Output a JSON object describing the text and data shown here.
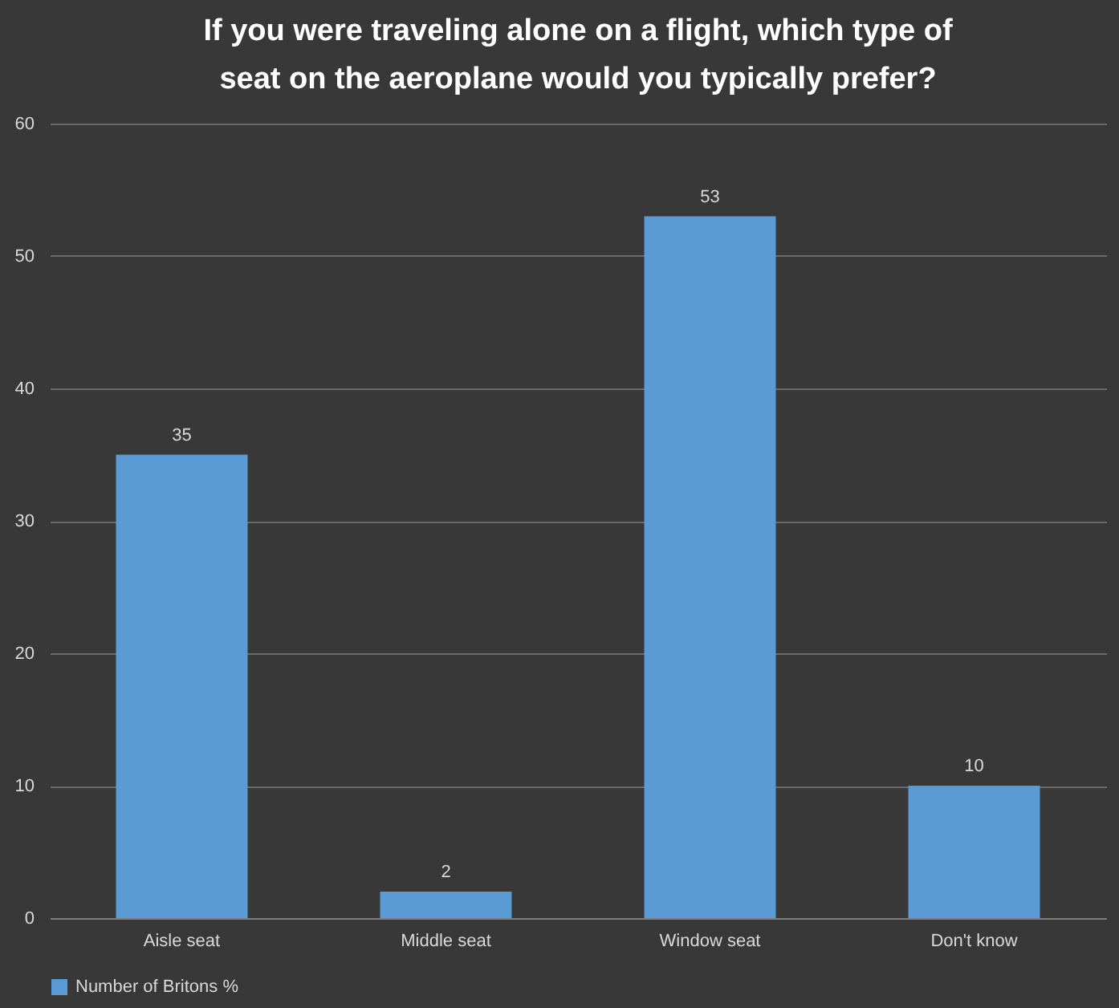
{
  "chart_data": {
    "type": "bar",
    "title": "If you were traveling  alone on a flight,  which type of seat on the aeroplane  would you typically  prefer?",
    "categories": [
      "Aisle seat",
      "Middle seat",
      "Window seat",
      "Don't know"
    ],
    "series": [
      {
        "name": "Number of Britons %",
        "color": "#5b9bd5",
        "values": [
          35,
          2,
          53,
          10
        ]
      }
    ],
    "ylim": [
      0,
      60
    ],
    "yticks": [
      0,
      10,
      20,
      30,
      40,
      50,
      60
    ],
    "grid": "y",
    "legend": "bottom",
    "data_labels": true
  }
}
